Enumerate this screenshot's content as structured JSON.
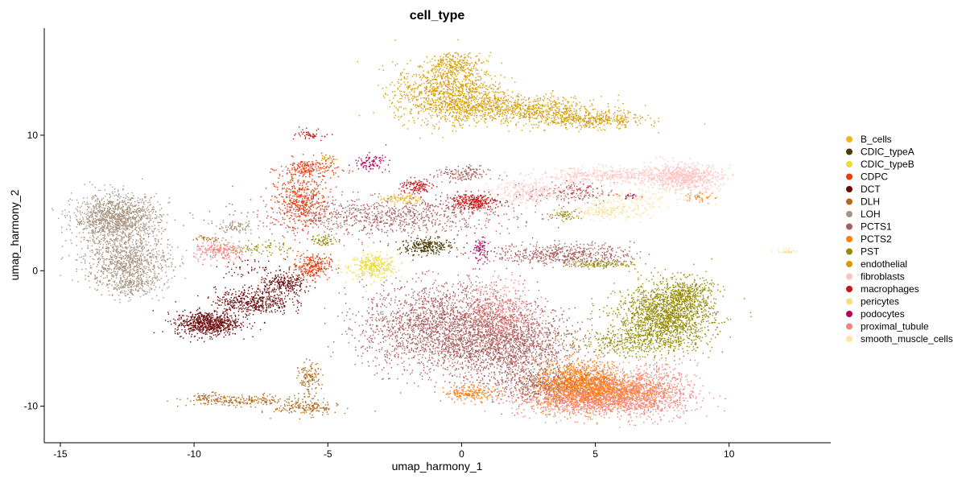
{
  "chart_data": {
    "type": "scatter",
    "title": "cell_type",
    "xlabel": "umap_harmony_1",
    "ylabel": "umap_harmony_2",
    "xlim": [
      -15.6,
      13.8
    ],
    "ylim": [
      -12.7,
      17.9
    ],
    "xticks": [
      -15,
      -10,
      -5,
      0,
      5,
      10
    ],
    "yticks": [
      -10,
      0,
      10
    ],
    "grid": false,
    "legend_position": "right",
    "series": [
      {
        "name": "B_cells",
        "color": "#F4B41A",
        "clusters": [
          {
            "cx": -2.4,
            "cy": 5.3,
            "sx": 0.3,
            "sy": 0.15,
            "n": 60
          },
          {
            "cx": -1.9,
            "cy": 5.2,
            "sx": 0.2,
            "sy": 0.2,
            "n": 30
          }
        ]
      },
      {
        "name": "CDIC_typeA",
        "color": "#4A3B00",
        "clusters": [
          {
            "cx": -1.3,
            "cy": 1.8,
            "sx": 0.5,
            "sy": 0.3,
            "n": 260
          }
        ]
      },
      {
        "name": "CDIC_typeB",
        "color": "#E9DD3C",
        "clusters": [
          {
            "cx": -3.3,
            "cy": 0.3,
            "sx": 0.45,
            "sy": 0.45,
            "n": 340
          }
        ]
      },
      {
        "name": "CDPC",
        "color": "#E53D0A",
        "clusters": [
          {
            "cx": -6.0,
            "cy": 5.1,
            "sx": 0.5,
            "sy": 0.9,
            "n": 450
          },
          {
            "cx": -5.7,
            "cy": 7.5,
            "sx": 0.55,
            "sy": 0.4,
            "n": 220
          },
          {
            "cx": -5.6,
            "cy": 0.3,
            "sx": 0.35,
            "sy": 0.45,
            "n": 260
          }
        ]
      },
      {
        "name": "DCT",
        "color": "#6B0A0A",
        "clusters": [
          {
            "cx": -9.5,
            "cy": -3.9,
            "sx": 0.6,
            "sy": 0.45,
            "n": 700
          },
          {
            "cx": -7.8,
            "cy": -2.3,
            "sx": 0.7,
            "sy": 0.5,
            "n": 450
          },
          {
            "cx": -6.6,
            "cy": -1.0,
            "sx": 0.5,
            "sy": 0.4,
            "n": 250
          },
          {
            "cx": -8.0,
            "cy": 0.2,
            "sx": 0.6,
            "sy": 0.3,
            "n": 50
          }
        ]
      },
      {
        "name": "DLH",
        "color": "#B06A1C",
        "clusters": [
          {
            "cx": -8.2,
            "cy": -9.6,
            "sx": 1.0,
            "sy": 0.2,
            "n": 200
          },
          {
            "cx": -5.8,
            "cy": -10.1,
            "sx": 0.6,
            "sy": 0.3,
            "n": 180
          },
          {
            "cx": -5.7,
            "cy": -8.0,
            "sx": 0.2,
            "sy": 0.6,
            "n": 130
          },
          {
            "cx": -9.5,
            "cy": -9.4,
            "sx": 0.3,
            "sy": 0.2,
            "n": 60
          },
          {
            "cx": -9.5,
            "cy": 2.4,
            "sx": 0.3,
            "sy": 0.1,
            "n": 30
          }
        ]
      },
      {
        "name": "LOH",
        "color": "#A89380",
        "clusters": [
          {
            "cx": -12.9,
            "cy": 3.8,
            "sx": 0.8,
            "sy": 0.9,
            "n": 1300
          },
          {
            "cx": -12.5,
            "cy": 0.6,
            "sx": 0.8,
            "sy": 1.0,
            "n": 900
          },
          {
            "cx": -12.3,
            "cy": -1.2,
            "sx": 0.5,
            "sy": 0.35,
            "n": 150
          },
          {
            "cx": -8.5,
            "cy": 3.2,
            "sx": 0.4,
            "sy": 0.2,
            "n": 80
          }
        ]
      },
      {
        "name": "PCTS1",
        "color": "#A95E5E",
        "clusters": [
          {
            "cx": -0.7,
            "cy": -4.2,
            "sx": 1.5,
            "sy": 1.6,
            "n": 2200
          },
          {
            "cx": 1.9,
            "cy": -5.6,
            "sx": 1.2,
            "sy": 1.5,
            "n": 1500
          },
          {
            "cx": 3.5,
            "cy": -8.5,
            "sx": 1.1,
            "sy": 0.6,
            "n": 600
          },
          {
            "cx": -2.9,
            "cy": 4.0,
            "sx": 2.4,
            "sy": 0.7,
            "n": 900
          },
          {
            "cx": 3.8,
            "cy": 1.2,
            "sx": 1.3,
            "sy": 0.4,
            "n": 550
          },
          {
            "cx": 0.0,
            "cy": 7.1,
            "sx": 0.5,
            "sy": 0.3,
            "n": 150
          },
          {
            "cx": 4.1,
            "cy": 5.7,
            "sx": 0.8,
            "sy": 0.4,
            "n": 150
          }
        ]
      },
      {
        "name": "PCTS2",
        "color": "#FF7E0E",
        "clusters": [
          {
            "cx": 4.5,
            "cy": -8.5,
            "sx": 0.9,
            "sy": 0.9,
            "n": 1500
          },
          {
            "cx": 6.0,
            "cy": -9.0,
            "sx": 0.9,
            "sy": 0.5,
            "n": 500
          },
          {
            "cx": 0.4,
            "cy": -9.0,
            "sx": 0.5,
            "sy": 0.3,
            "n": 200
          },
          {
            "cx": 8.9,
            "cy": 5.4,
            "sx": 0.3,
            "sy": 0.2,
            "n": 40
          }
        ]
      },
      {
        "name": "PST",
        "color": "#948A03",
        "clusters": [
          {
            "cx": 7.6,
            "cy": -3.5,
            "sx": 0.9,
            "sy": 1.2,
            "n": 1700
          },
          {
            "cx": 8.4,
            "cy": -1.7,
            "sx": 0.5,
            "sy": 0.6,
            "n": 350
          },
          {
            "cx": 5.8,
            "cy": -5.3,
            "sx": 0.9,
            "sy": 0.5,
            "n": 250
          },
          {
            "cx": 5.3,
            "cy": 0.5,
            "sx": 0.6,
            "sy": 0.15,
            "n": 120
          },
          {
            "cx": -7.5,
            "cy": 1.7,
            "sx": 0.6,
            "sy": 0.3,
            "n": 80
          },
          {
            "cx": -5.1,
            "cy": 2.2,
            "sx": 0.3,
            "sy": 0.2,
            "n": 70
          },
          {
            "cx": 3.9,
            "cy": 4.1,
            "sx": 0.3,
            "sy": 0.2,
            "n": 60
          }
        ]
      },
      {
        "name": "endothelial",
        "color": "#D49C00",
        "clusters": [
          {
            "cx": -0.5,
            "cy": 13.1,
            "sx": 1.0,
            "sy": 1.1,
            "n": 1100
          },
          {
            "cx": 2.1,
            "cy": 11.9,
            "sx": 1.6,
            "sy": 0.5,
            "n": 800
          },
          {
            "cx": 4.8,
            "cy": 11.1,
            "sx": 1.0,
            "sy": 0.3,
            "n": 400
          },
          {
            "cx": -0.2,
            "cy": 15.3,
            "sx": 0.5,
            "sy": 0.4,
            "n": 200
          },
          {
            "cx": -5.0,
            "cy": 8.3,
            "sx": 0.15,
            "sy": 0.1,
            "n": 20
          }
        ]
      },
      {
        "name": "fibroblasts",
        "color": "#FFC2BE",
        "clusters": [
          {
            "cx": 8.3,
            "cy": 6.9,
            "sx": 0.7,
            "sy": 0.5,
            "n": 700
          },
          {
            "cx": 5.5,
            "cy": 7.0,
            "sx": 1.3,
            "sy": 0.3,
            "n": 400
          },
          {
            "cx": 2.7,
            "cy": 5.8,
            "sx": 0.8,
            "sy": 0.4,
            "n": 250
          }
        ]
      },
      {
        "name": "macrophages",
        "color": "#C81414",
        "clusters": [
          {
            "cx": 0.4,
            "cy": 5.1,
            "sx": 0.5,
            "sy": 0.3,
            "n": 300
          },
          {
            "cx": -1.7,
            "cy": 6.2,
            "sx": 0.3,
            "sy": 0.3,
            "n": 120
          },
          {
            "cx": -5.6,
            "cy": 10.0,
            "sx": 0.3,
            "sy": 0.2,
            "n": 50
          },
          {
            "cx": 4.4,
            "cy": 6.0,
            "sx": 0.2,
            "sy": 0.2,
            "n": 15
          }
        ]
      },
      {
        "name": "pericytes",
        "color": "#F7DC82",
        "clusters": [
          {
            "cx": 5.5,
            "cy": 4.4,
            "sx": 0.8,
            "sy": 0.3,
            "n": 160
          },
          {
            "cx": 12.2,
            "cy": 1.4,
            "sx": 0.2,
            "sy": 0.1,
            "n": 25
          }
        ]
      },
      {
        "name": "podocytes",
        "color": "#B5005E",
        "clusters": [
          {
            "cx": -3.4,
            "cy": 8.0,
            "sx": 0.3,
            "sy": 0.3,
            "n": 90
          },
          {
            "cx": 0.7,
            "cy": 1.5,
            "sx": 0.2,
            "sy": 0.5,
            "n": 80
          },
          {
            "cx": 6.3,
            "cy": 5.5,
            "sx": 0.2,
            "sy": 0.1,
            "n": 20
          }
        ]
      },
      {
        "name": "proximal_tubule",
        "color": "#F28480",
        "clusters": [
          {
            "cx": 6.8,
            "cy": -9.0,
            "sx": 1.0,
            "sy": 1.0,
            "n": 900
          },
          {
            "cx": 4.5,
            "cy": -9.7,
            "sx": 1.3,
            "sy": 0.5,
            "n": 600
          },
          {
            "cx": 1.5,
            "cy": -3.0,
            "sx": 0.6,
            "sy": 1.2,
            "n": 400
          },
          {
            "cx": -9.0,
            "cy": 1.4,
            "sx": 0.5,
            "sy": 0.4,
            "n": 220
          }
        ]
      },
      {
        "name": "smooth_muscle_cells",
        "color": "#FFE3A0",
        "clusters": [
          {
            "cx": 6.3,
            "cy": 5.4,
            "sx": 1.0,
            "sy": 0.3,
            "n": 120
          }
        ]
      }
    ]
  }
}
